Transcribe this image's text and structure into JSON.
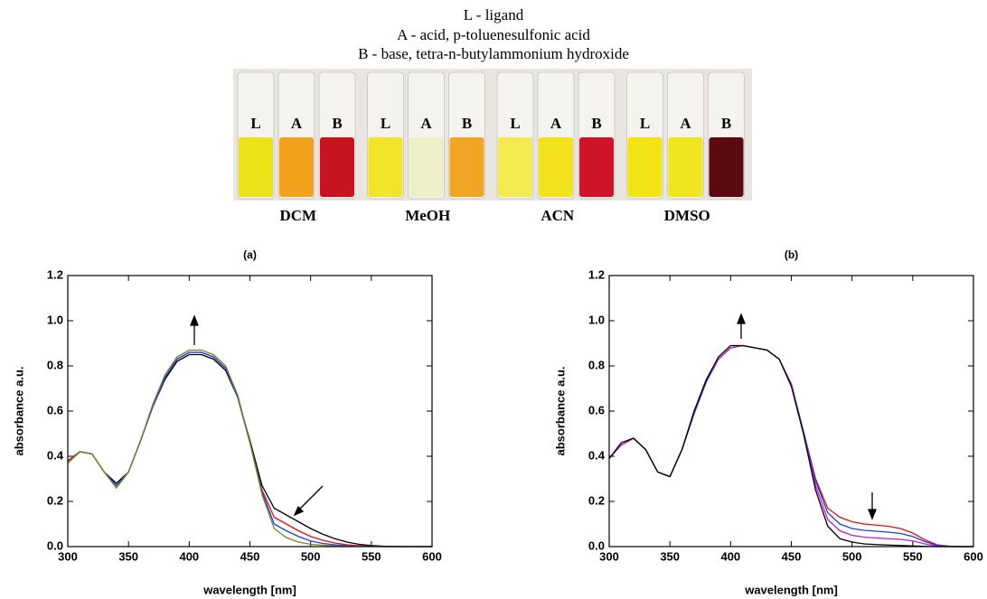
{
  "legend_text": [
    "L - ligand",
    "A - acid, p-toluenesulfonic acid",
    "B - base, tetra-n-butylammonium hydroxide"
  ],
  "photo": {
    "groups": [
      {
        "solvent": "DCM",
        "vials": [
          {
            "label": "L",
            "color": "#ece21a"
          },
          {
            "label": "A",
            "color": "#f0a21c"
          },
          {
            "label": "B",
            "color": "#c8141e"
          }
        ]
      },
      {
        "solvent": "MeOH",
        "vials": [
          {
            "label": "L",
            "color": "#f2e42a"
          },
          {
            "label": "A",
            "color": "#ecefc8"
          },
          {
            "label": "B",
            "color": "#f0a524"
          }
        ]
      },
      {
        "solvent": "ACN",
        "vials": [
          {
            "label": "L",
            "color": "#f2ea50"
          },
          {
            "label": "A",
            "color": "#f2e21c"
          },
          {
            "label": "B",
            "color": "#d0142a"
          }
        ]
      },
      {
        "solvent": "DMSO",
        "vials": [
          {
            "label": "L",
            "color": "#f2e412"
          },
          {
            "label": "A",
            "color": "#f0e620"
          },
          {
            "label": "B",
            "color": "#5a0a10"
          }
        ]
      }
    ]
  },
  "chart_data": [
    {
      "type": "line",
      "title": "(a)",
      "x_label": "wavelength [nm]",
      "y_label": "absorbance a.u.",
      "x": [
        300,
        310,
        320,
        330,
        340,
        350,
        360,
        370,
        380,
        390,
        400,
        410,
        420,
        430,
        440,
        450,
        460,
        470,
        480,
        490,
        500,
        510,
        520,
        530,
        540,
        550,
        560,
        570,
        580,
        590,
        600
      ],
      "series": [
        {
          "color": "#000000",
          "values": [
            0.38,
            0.42,
            0.41,
            0.33,
            0.28,
            0.33,
            0.47,
            0.62,
            0.74,
            0.82,
            0.85,
            0.85,
            0.83,
            0.78,
            0.66,
            0.47,
            0.27,
            0.17,
            0.14,
            0.11,
            0.08,
            0.055,
            0.035,
            0.02,
            0.01,
            0.005,
            0.002,
            0.001,
            0,
            0,
            0
          ]
        },
        {
          "color": "#e01010",
          "values": [
            0.38,
            0.42,
            0.41,
            0.33,
            0.27,
            0.33,
            0.47,
            0.62,
            0.75,
            0.83,
            0.86,
            0.86,
            0.84,
            0.79,
            0.66,
            0.46,
            0.25,
            0.13,
            0.1,
            0.07,
            0.045,
            0.028,
            0.016,
            0.008,
            0.004,
            0.002,
            0.001,
            0,
            0,
            0,
            0
          ]
        },
        {
          "color": "#1f3fe0",
          "values": [
            0.37,
            0.42,
            0.41,
            0.33,
            0.27,
            0.33,
            0.47,
            0.62,
            0.75,
            0.83,
            0.86,
            0.86,
            0.84,
            0.79,
            0.66,
            0.46,
            0.24,
            0.1,
            0.07,
            0.045,
            0.025,
            0.014,
            0.008,
            0.004,
            0.002,
            0.001,
            0,
            0,
            0,
            0,
            0
          ]
        },
        {
          "color": "#6a8a20",
          "values": [
            0.37,
            0.42,
            0.41,
            0.33,
            0.26,
            0.33,
            0.47,
            0.63,
            0.76,
            0.84,
            0.87,
            0.87,
            0.85,
            0.8,
            0.67,
            0.46,
            0.23,
            0.08,
            0.04,
            0.02,
            0.01,
            0.006,
            0.003,
            0.002,
            0.001,
            0,
            0,
            0,
            0,
            0,
            0
          ]
        }
      ],
      "xlim": [
        300,
        600
      ],
      "xticks": [
        300,
        350,
        400,
        450,
        500,
        550,
        600
      ],
      "ylim": [
        0,
        1.2
      ],
      "yticks": [
        {
          "value": 0,
          "label": "0.0"
        },
        0.2,
        0.4,
        0.6,
        0.8,
        {
          "value": 1,
          "label": "1.0"
        },
        1.2
      ]
    },
    {
      "type": "line",
      "title": "(b)",
      "x_label": "wavelength [nm]",
      "y_label": "absorbance a.u.",
      "x": [
        300,
        310,
        320,
        330,
        340,
        350,
        360,
        370,
        380,
        390,
        400,
        410,
        420,
        430,
        440,
        450,
        460,
        470,
        480,
        490,
        500,
        510,
        520,
        530,
        540,
        550,
        560,
        570,
        580,
        590,
        600
      ],
      "series": [
        {
          "color": "#e01010",
          "values": [
            0.39,
            0.45,
            0.48,
            0.43,
            0.33,
            0.31,
            0.43,
            0.59,
            0.73,
            0.83,
            0.88,
            0.89,
            0.88,
            0.87,
            0.83,
            0.72,
            0.51,
            0.3,
            0.17,
            0.13,
            0.11,
            0.1,
            0.095,
            0.09,
            0.08,
            0.06,
            0.03,
            0.008,
            0.002,
            0,
            0
          ]
        },
        {
          "color": "#1f3fe0",
          "values": [
            0.39,
            0.45,
            0.48,
            0.43,
            0.33,
            0.31,
            0.43,
            0.59,
            0.73,
            0.83,
            0.88,
            0.89,
            0.88,
            0.87,
            0.83,
            0.72,
            0.51,
            0.29,
            0.15,
            0.1,
            0.08,
            0.072,
            0.068,
            0.064,
            0.058,
            0.045,
            0.022,
            0.006,
            0.001,
            0,
            0
          ]
        },
        {
          "color": "#c020c0",
          "values": [
            0.39,
            0.45,
            0.48,
            0.43,
            0.33,
            0.31,
            0.43,
            0.6,
            0.74,
            0.83,
            0.88,
            0.89,
            0.88,
            0.87,
            0.83,
            0.72,
            0.5,
            0.27,
            0.12,
            0.07,
            0.05,
            0.042,
            0.038,
            0.035,
            0.032,
            0.025,
            0.012,
            0.003,
            0,
            0,
            0
          ]
        },
        {
          "color": "#000000",
          "values": [
            0.39,
            0.46,
            0.48,
            0.43,
            0.33,
            0.31,
            0.43,
            0.6,
            0.74,
            0.84,
            0.89,
            0.89,
            0.88,
            0.87,
            0.83,
            0.71,
            0.5,
            0.25,
            0.09,
            0.035,
            0.02,
            0.012,
            0.009,
            0.007,
            0.005,
            0.003,
            0.001,
            0,
            0,
            0,
            0
          ]
        }
      ],
      "xlim": [
        300,
        600
      ],
      "xticks": [
        300,
        350,
        400,
        450,
        500,
        550,
        600
      ],
      "ylim": [
        0,
        1.2
      ],
      "yticks": [
        {
          "value": 0,
          "label": "0.0"
        },
        0.2,
        0.4,
        0.6,
        0.8,
        {
          "value": 1,
          "label": "1.0"
        },
        1.2
      ]
    }
  ]
}
